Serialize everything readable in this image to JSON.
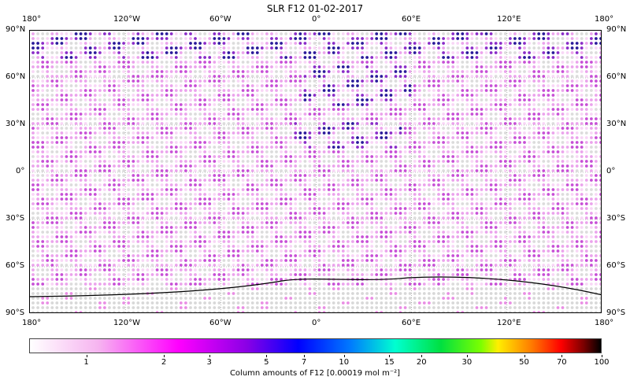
{
  "chart_data": {
    "type": "heatmap",
    "title": "SLR F12 01-02-2017",
    "projection": "equirectangular world map with coastlines",
    "x_ticks_top": [
      "180°",
      "120°W",
      "60°W",
      "0°",
      "60°E",
      "120°E",
      "180°"
    ],
    "x_ticks_bottom": [
      "180°",
      "120°W",
      "60°W",
      "0°",
      "60°E",
      "120°E",
      "180°"
    ],
    "y_ticks_left": [
      "90°N",
      "60°N",
      "30°N",
      "0°",
      "30°S",
      "60°S",
      "90°S"
    ],
    "y_ticks_right": [
      "90°N",
      "60°N",
      "30°N",
      "0°",
      "30°S",
      "60°S",
      "90°S"
    ],
    "xlim": [
      -180,
      180
    ],
    "ylim": [
      -90,
      90
    ],
    "grid": "dotted at 30° intervals",
    "colorbar": {
      "label": "Column amounts of F12 [0.00019 mol m⁻²]",
      "scale": "log",
      "range": [
        0.6,
        100
      ],
      "ticks": [
        "1",
        "2",
        "3",
        "5",
        "7",
        "10",
        "15",
        "20",
        "30",
        "50",
        "70",
        "100"
      ],
      "colors": [
        "#ffffff",
        "#ff00ff",
        "#0000ff",
        "#00ffd0",
        "#00e040",
        "#ffee00",
        "#ff0000",
        "#000000"
      ]
    },
    "description": "Gridded dot map; most values ~1-2 (pink/magenta), higher values (~2-3, dark blue/purple) over Sahara, Arabian region, Europe and high northern latitudes; gray dots = no data."
  }
}
